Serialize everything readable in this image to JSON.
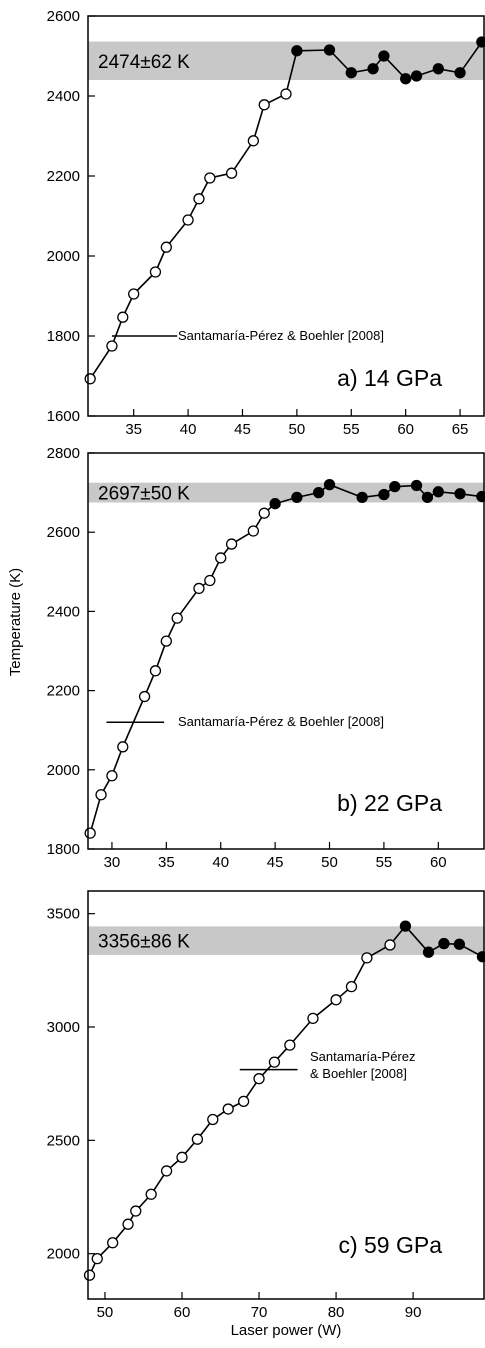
{
  "chart_data": [
    {
      "type": "line",
      "panel_label": "a) 14 GPa",
      "xlabel": "",
      "ylabel": "",
      "xlim": [
        30.8,
        67.2
      ],
      "ylim": [
        1600,
        2600
      ],
      "xticks": [
        35,
        40,
        45,
        50,
        55,
        60,
        65
      ],
      "yticks": [
        1600,
        1800,
        2000,
        2200,
        2400,
        2600
      ],
      "band": {
        "lower": 2440,
        "upper": 2536,
        "label": "2474±62 K"
      },
      "reference": {
        "label": "Santamaría-Pérez & Boehler [2008]",
        "lines": [
          "Santamaría-Pérez & Boehler [2008]"
        ],
        "y": 1800,
        "x_start": 33,
        "x_end": 39
      },
      "series": [
        {
          "marker": "open",
          "points": [
            [
              31,
              1693
            ],
            [
              33,
              1775
            ],
            [
              34,
              1847
            ],
            [
              35,
              1905
            ],
            [
              37,
              1960
            ],
            [
              38,
              2022
            ],
            [
              40,
              2090
            ],
            [
              41,
              2143
            ],
            [
              42,
              2195
            ],
            [
              44,
              2207
            ],
            [
              46,
              2288
            ],
            [
              47,
              2378
            ],
            [
              49,
              2405
            ]
          ]
        },
        {
          "marker": "filled",
          "points": [
            [
              50,
              2513
            ],
            [
              53,
              2515
            ],
            [
              55,
              2458
            ],
            [
              57,
              2468
            ],
            [
              58,
              2500
            ],
            [
              60,
              2443
            ],
            [
              61,
              2450
            ],
            [
              63,
              2468
            ],
            [
              65,
              2458
            ],
            [
              67,
              2535
            ]
          ]
        }
      ]
    },
    {
      "type": "line",
      "panel_label": "b) 22 GPa",
      "xlabel": "",
      "ylabel": "Temperature (K)",
      "xlim": [
        27.8,
        64.2
      ],
      "ylim": [
        1800,
        2800
      ],
      "xticks": [
        30,
        35,
        40,
        45,
        50,
        55,
        60
      ],
      "yticks": [
        1800,
        2000,
        2200,
        2400,
        2600,
        2800
      ],
      "band": {
        "lower": 2675,
        "upper": 2725,
        "label": "2697±50 K"
      },
      "reference": {
        "label": "Santamaría-Pérez & Boehler [2008]",
        "lines": [
          "Santamaría-Pérez & Boehler [2008]"
        ],
        "y": 2120,
        "x_start": 29.5,
        "x_end": 34.8
      },
      "series": [
        {
          "marker": "open",
          "points": [
            [
              28,
              1840
            ],
            [
              29,
              1937
            ],
            [
              30,
              1985
            ],
            [
              31,
              2058
            ],
            [
              33,
              2185
            ],
            [
              34,
              2250
            ],
            [
              35,
              2325
            ],
            [
              36,
              2383
            ],
            [
              38,
              2458
            ],
            [
              39,
              2478
            ],
            [
              40,
              2535
            ],
            [
              41,
              2570
            ],
            [
              43,
              2603
            ],
            [
              44,
              2648
            ]
          ]
        },
        {
          "marker": "filled",
          "points": [
            [
              45,
              2672
            ],
            [
              47,
              2688
            ],
            [
              49,
              2700
            ],
            [
              50,
              2720
            ],
            [
              53,
              2688
            ],
            [
              55,
              2695
            ],
            [
              56,
              2715
            ],
            [
              58,
              2718
            ],
            [
              59,
              2688
            ],
            [
              60,
              2702
            ],
            [
              62,
              2697
            ],
            [
              64,
              2690
            ]
          ]
        }
      ]
    },
    {
      "type": "line",
      "panel_label": "c) 59 GPa",
      "xlabel": "Laser power (W)",
      "ylabel": "",
      "xlim": [
        47.8,
        99.2
      ],
      "ylim": [
        1800,
        3600
      ],
      "xticks": [
        50,
        60,
        70,
        80,
        90
      ],
      "yticks": [
        2000,
        2500,
        3000,
        3500
      ],
      "band": {
        "lower": 3318,
        "upper": 3444,
        "label": "3356±86 K"
      },
      "reference": {
        "label": "Santamaría-Pérez & Boehler [2008]",
        "lines": [
          "Santamaría-Pérez",
          "& Boehler [2008]"
        ],
        "y": 2812,
        "x_start": 67.5,
        "x_end": 75
      },
      "series": [
        {
          "marker": "open",
          "points": [
            [
              48,
              1905
            ],
            [
              49,
              1978
            ],
            [
              51,
              2048
            ],
            [
              53,
              2130
            ],
            [
              54,
              2188
            ],
            [
              56,
              2262
            ],
            [
              58,
              2365
            ],
            [
              60,
              2425
            ],
            [
              62,
              2505
            ],
            [
              64,
              2592
            ],
            [
              66,
              2638
            ],
            [
              68,
              2672
            ],
            [
              70,
              2772
            ],
            [
              72,
              2845
            ],
            [
              74,
              2920
            ],
            [
              77,
              3038
            ],
            [
              80,
              3120
            ],
            [
              82,
              3178
            ],
            [
              84,
              3305
            ],
            [
              87,
              3362
            ]
          ]
        },
        {
          "marker": "filled",
          "points": [
            [
              89,
              3445
            ],
            [
              92,
              3330
            ],
            [
              94,
              3368
            ],
            [
              96,
              3365
            ],
            [
              99,
              3310
            ]
          ]
        }
      ]
    }
  ]
}
